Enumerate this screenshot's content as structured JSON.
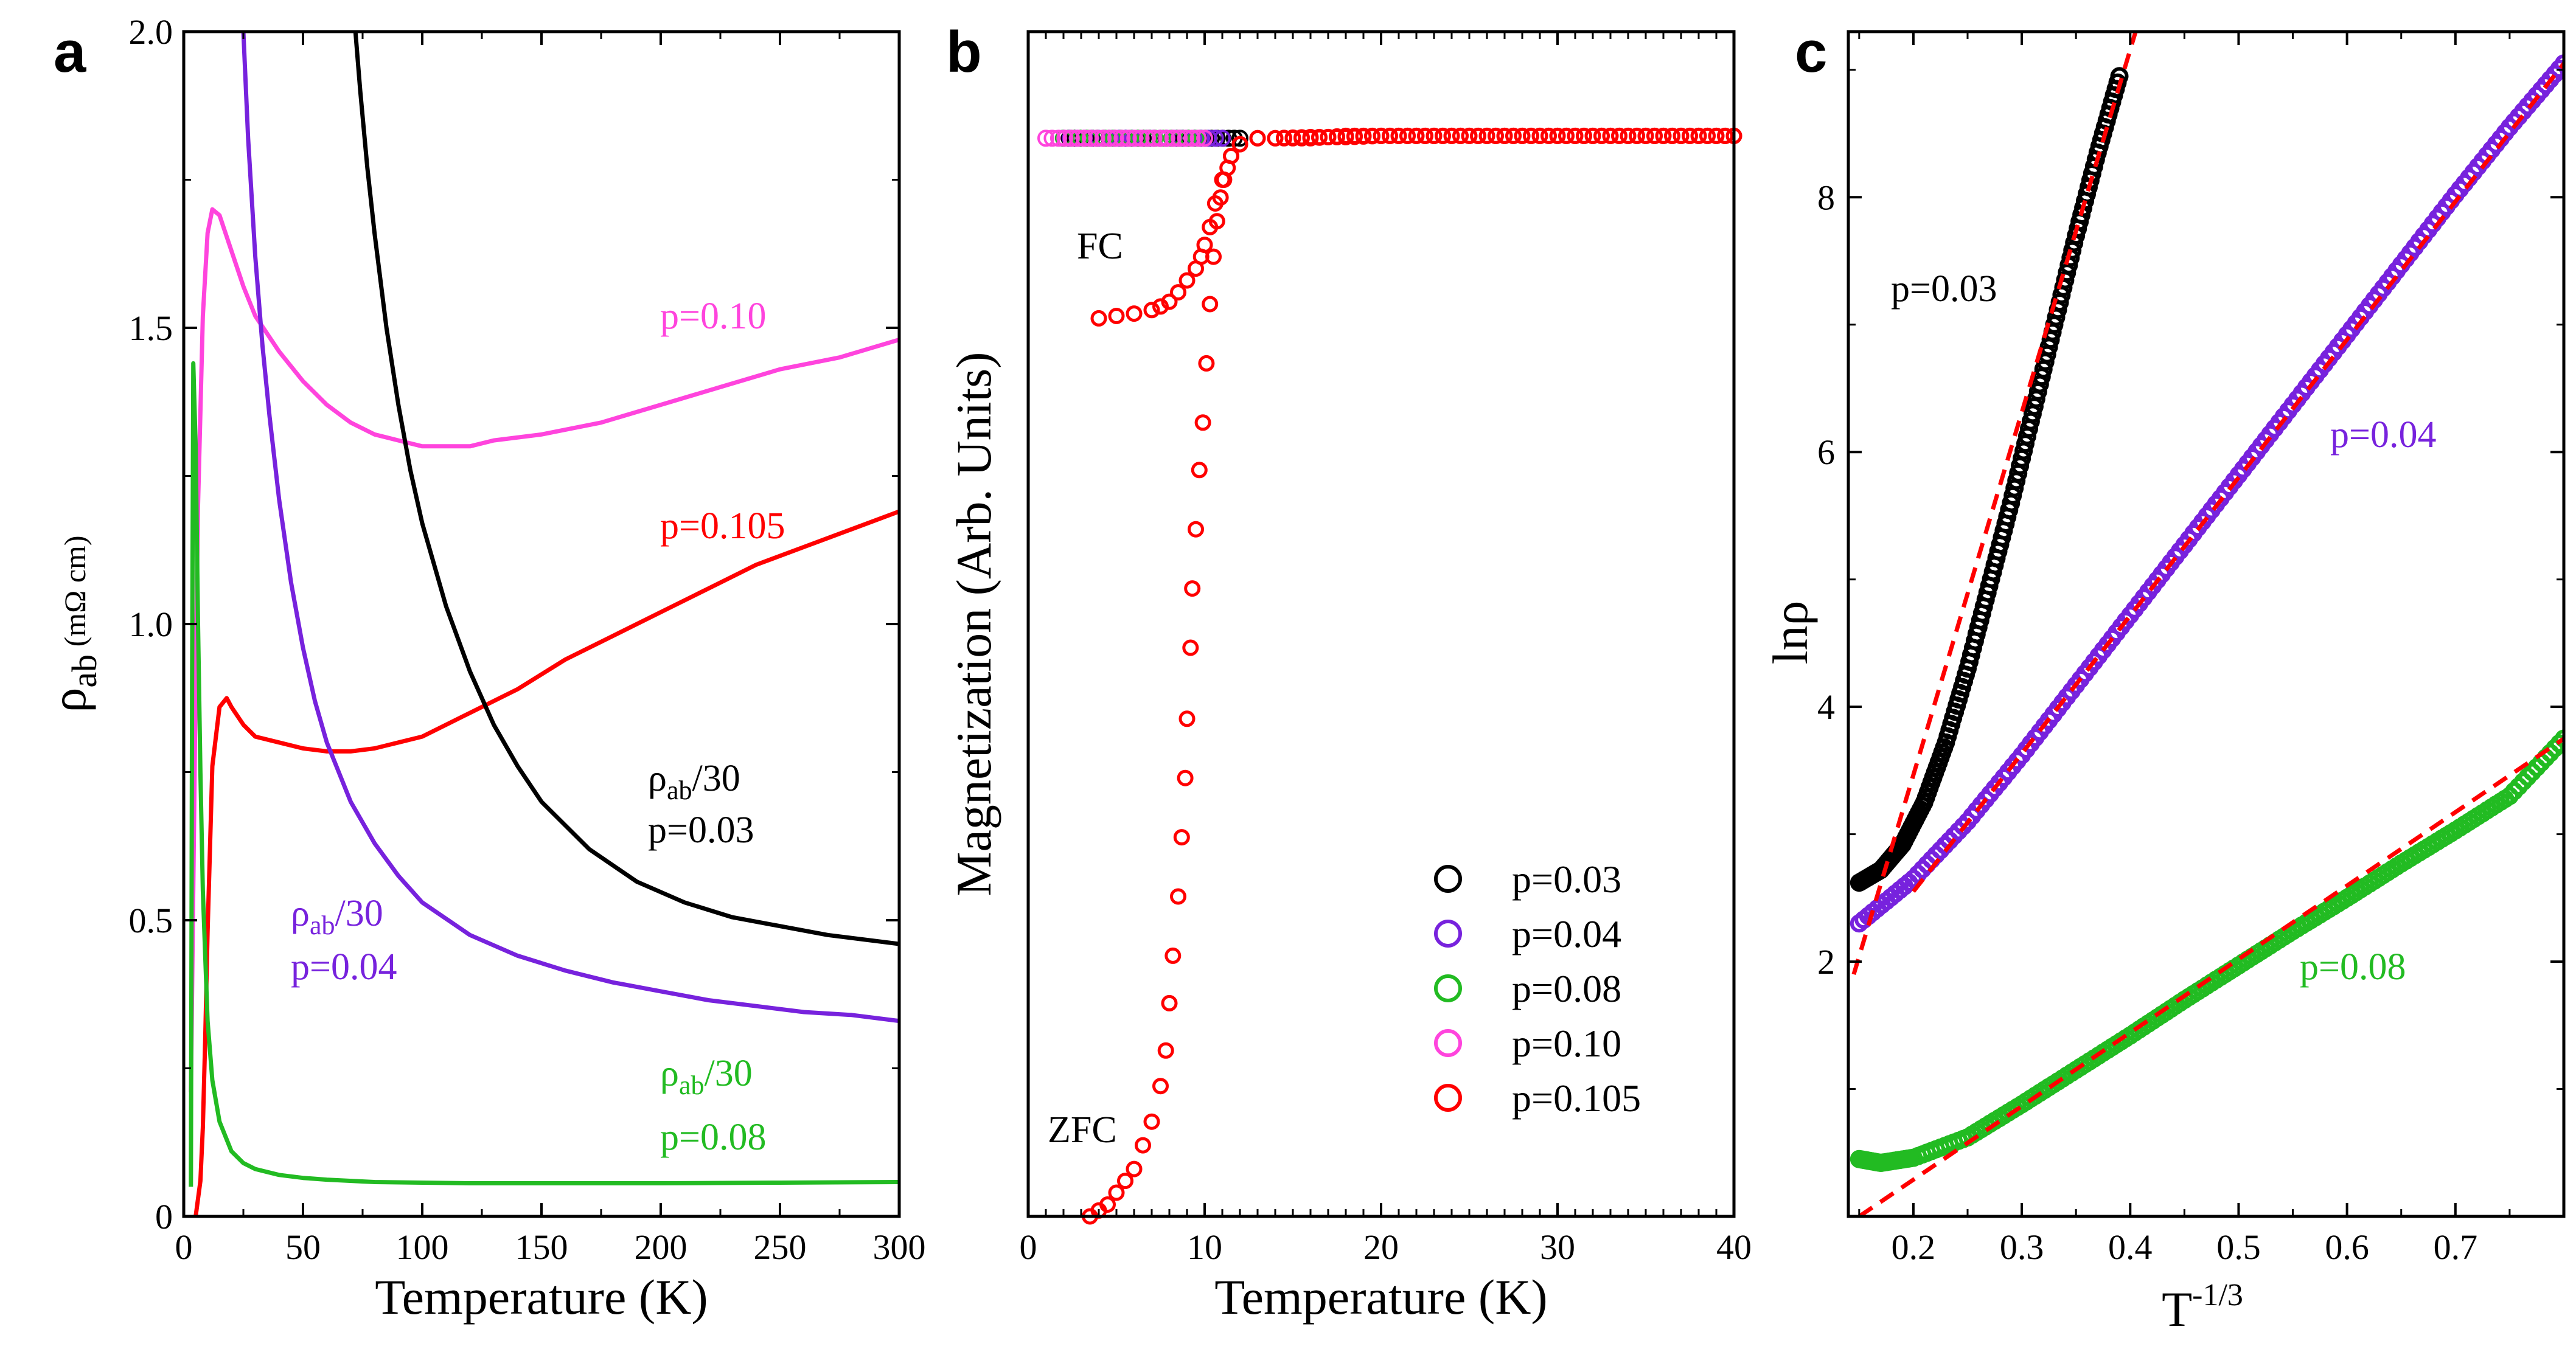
{
  "chart_data": [
    {
      "panel": "a",
      "type": "line",
      "xlabel": "Temperature (K)",
      "ylabel": {
        "main": "ρ",
        "sub": "ab",
        "unit": " (mΩ cm)"
      },
      "xlim": [
        0,
        300
      ],
      "ylim": [
        0,
        2.0
      ],
      "xticks": [
        "0",
        "50",
        "100",
        "150",
        "200",
        "250",
        "300"
      ],
      "yticks": [
        "0",
        "0.5",
        "1.0",
        "1.5",
        "2.0"
      ],
      "series": [
        {
          "name": "p=0.10",
          "color": "#ff44dd",
          "x": [
            3,
            5,
            6,
            8,
            10,
            12,
            15,
            20,
            25,
            30,
            40,
            50,
            60,
            70,
            80,
            90,
            100,
            110,
            120,
            130,
            150,
            175,
            200,
            225,
            250,
            275,
            300
          ],
          "y": [
            0.21,
            0.9,
            1.2,
            1.52,
            1.66,
            1.7,
            1.69,
            1.63,
            1.57,
            1.52,
            1.46,
            1.41,
            1.37,
            1.34,
            1.32,
            1.31,
            1.3,
            1.3,
            1.3,
            1.31,
            1.32,
            1.34,
            1.37,
            1.4,
            1.43,
            1.45,
            1.48
          ]
        },
        {
          "name": "p=0.105",
          "color": "#ff0000",
          "x": [
            5,
            7,
            8,
            9,
            10,
            12,
            15,
            18,
            20,
            25,
            30,
            40,
            50,
            60,
            70,
            80,
            90,
            100,
            110,
            120,
            140,
            160,
            180,
            200,
            220,
            240,
            260,
            280,
            300
          ],
          "y": [
            0,
            0.06,
            0.15,
            0.3,
            0.48,
            0.76,
            0.86,
            0.875,
            0.86,
            0.83,
            0.81,
            0.8,
            0.79,
            0.785,
            0.785,
            0.79,
            0.8,
            0.81,
            0.83,
            0.85,
            0.89,
            0.94,
            0.98,
            1.02,
            1.06,
            1.1,
            1.13,
            1.16,
            1.19
          ]
        },
        {
          "name": "ρab/30 p=0.03",
          "color": "#000000",
          "x": [
            72,
            74,
            77,
            80,
            85,
            90,
            95,
            100,
            110,
            120,
            130,
            140,
            150,
            170,
            190,
            210,
            230,
            250,
            270,
            300
          ],
          "y": [
            2.0,
            1.9,
            1.77,
            1.66,
            1.5,
            1.37,
            1.26,
            1.17,
            1.03,
            0.92,
            0.83,
            0.76,
            0.7,
            0.62,
            0.565,
            0.53,
            0.505,
            0.49,
            0.475,
            0.46
          ]
        },
        {
          "name": "ρab/30 p=0.04",
          "color": "#7722dd",
          "x": [
            25,
            27,
            30,
            33,
            36,
            40,
            45,
            50,
            55,
            60,
            70,
            80,
            90,
            100,
            120,
            140,
            160,
            180,
            200,
            220,
            240,
            260,
            280,
            300
          ],
          "y": [
            2.0,
            1.82,
            1.62,
            1.47,
            1.35,
            1.21,
            1.07,
            0.96,
            0.87,
            0.8,
            0.7,
            0.63,
            0.575,
            0.53,
            0.475,
            0.44,
            0.415,
            0.395,
            0.38,
            0.365,
            0.355,
            0.345,
            0.34,
            0.33
          ]
        },
        {
          "name": "ρab/30 p=0.08",
          "color": "#22bb22",
          "x": [
            3,
            3.5,
            4,
            5,
            6,
            7,
            8,
            10,
            12,
            15,
            20,
            25,
            30,
            40,
            50,
            60,
            80,
            100,
            120,
            150,
            200,
            250,
            300
          ],
          "y": [
            0.05,
            0.9,
            1.44,
            1.3,
            1.0,
            0.75,
            0.55,
            0.33,
            0.23,
            0.16,
            0.11,
            0.09,
            0.08,
            0.07,
            0.065,
            0.062,
            0.058,
            0.057,
            0.056,
            0.056,
            0.056,
            0.057,
            0.058
          ]
        }
      ],
      "annotations": [
        {
          "text": "p=0.10",
          "color": "#ff44dd"
        },
        {
          "text": "p=0.105",
          "color": "#ff0000"
        },
        {
          "main": "ρ",
          "sub": "ab",
          "tail": "/30",
          "line2": "p=0.03",
          "color": "#000000"
        },
        {
          "main": "ρ",
          "sub": "ab",
          "tail": "/30",
          "line2": "p=0.04",
          "color": "#7722dd"
        },
        {
          "main": "ρ",
          "sub": "ab",
          "tail": "/30",
          "line2": "p=0.08",
          "color": "#22bb22"
        }
      ]
    },
    {
      "panel": "b",
      "type": "scatter",
      "xlabel": "Temperature (K)",
      "ylabel": "Magnetization (Arb. Units)",
      "xlim": [
        0,
        40
      ],
      "ylim": [
        0,
        1
      ],
      "xticks": [
        "0",
        "10",
        "20",
        "30",
        "40"
      ],
      "series": [
        {
          "name": "p=0.03",
          "color": "#000000",
          "x_range": [
            2,
            12
          ],
          "y": 0.91,
          "n": 32
        },
        {
          "name": "p=0.04",
          "color": "#7722dd",
          "x_range": [
            2,
            11
          ],
          "y": 0.91,
          "n": 24
        },
        {
          "name": "p=0.08",
          "color": "#22bb22",
          "x_range": [
            2,
            10
          ],
          "y": 0.91,
          "n": 18
        },
        {
          "name": "p=0.10",
          "color": "#ff44dd",
          "x_range": [
            1,
            10
          ],
          "y": 0.91,
          "n": 26
        },
        {
          "name": "p=0.105 ZFC",
          "color": "#ff0000",
          "x": [
            3.5,
            4,
            4.5,
            5,
            5.5,
            6,
            6.5,
            7,
            7.5,
            7.8,
            8.0,
            8.2,
            8.5,
            8.7,
            8.9,
            9.0,
            9.2,
            9.3,
            9.5,
            9.7,
            9.9,
            10.1,
            10.3,
            10.5,
            10.7,
            10.9,
            11.1,
            11.3,
            11.5,
            12,
            13,
            14,
            16,
            18,
            20,
            22,
            24,
            26,
            28,
            30,
            32,
            34,
            36,
            38,
            40
          ],
          "y": [
            0.0,
            0.005,
            0.01,
            0.02,
            0.03,
            0.04,
            0.06,
            0.08,
            0.11,
            0.14,
            0.18,
            0.22,
            0.27,
            0.32,
            0.37,
            0.42,
            0.48,
            0.53,
            0.58,
            0.63,
            0.67,
            0.72,
            0.77,
            0.81,
            0.84,
            0.86,
            0.875,
            0.885,
            0.895,
            0.905,
            0.91,
            0.91,
            0.91,
            0.912,
            0.912,
            0.912,
            0.912,
            0.912,
            0.912,
            0.912,
            0.912,
            0.912,
            0.912,
            0.912,
            0.912
          ]
        },
        {
          "name": "p=0.105 FC",
          "color": "#ff0000",
          "x": [
            4,
            5,
            6,
            7,
            7.5,
            8,
            8.5,
            9,
            9.5,
            9.8,
            10,
            10.3,
            10.6,
            11,
            11.5,
            12,
            13,
            14,
            16,
            18,
            20,
            22,
            24,
            26,
            28,
            30,
            32,
            34,
            36,
            38,
            40
          ],
          "y": [
            0.758,
            0.76,
            0.762,
            0.765,
            0.768,
            0.772,
            0.78,
            0.79,
            0.8,
            0.81,
            0.82,
            0.835,
            0.855,
            0.875,
            0.895,
            0.905,
            0.91,
            0.91,
            0.911,
            0.911,
            0.912,
            0.912,
            0.912,
            0.912,
            0.912,
            0.912,
            0.912,
            0.912,
            0.912,
            0.912,
            0.912
          ]
        }
      ],
      "annotations": [
        {
          "text": "FC"
        },
        {
          "text": "ZFC"
        }
      ],
      "legend": [
        "p=0.03",
        "p=0.04",
        "p=0.08",
        "p=0.10",
        "p=0.105"
      ]
    },
    {
      "panel": "c",
      "type": "scatter",
      "xlabel": {
        "main": "T",
        "sup": "-1/3"
      },
      "ylabel": "lnρ",
      "xlim": [
        0.14,
        0.8
      ],
      "ylim": [
        0,
        9.3
      ],
      "xticks": [
        "0.2",
        "0.3",
        "0.4",
        "0.5",
        "0.6",
        "0.7"
      ],
      "yticks": [
        "2",
        "4",
        "6",
        "8"
      ],
      "series": [
        {
          "name": "p=0.03",
          "color": "#000000",
          "x": [
            0.15,
            0.17,
            0.19,
            0.21,
            0.23,
            0.25,
            0.27,
            0.29,
            0.31,
            0.33,
            0.35,
            0.37,
            0.39
          ],
          "y": [
            2.62,
            2.72,
            2.92,
            3.25,
            3.72,
            4.3,
            4.95,
            5.6,
            6.3,
            7.0,
            7.7,
            8.35,
            8.95
          ]
        },
        {
          "name": "p=0.04",
          "color": "#7722dd",
          "x": [
            0.15,
            0.2,
            0.25,
            0.3,
            0.35,
            0.4,
            0.45,
            0.5,
            0.55,
            0.6,
            0.65,
            0.7,
            0.75,
            0.8
          ],
          "y": [
            2.3,
            2.65,
            3.1,
            3.62,
            4.17,
            4.72,
            5.27,
            5.82,
            6.37,
            6.92,
            7.47,
            8.02,
            8.55,
            9.05
          ]
        },
        {
          "name": "p=0.08",
          "color": "#22bb22",
          "x": [
            0.15,
            0.17,
            0.2,
            0.25,
            0.3,
            0.35,
            0.4,
            0.45,
            0.5,
            0.55,
            0.6,
            0.65,
            0.7,
            0.75,
            0.8
          ],
          "y": [
            0.45,
            0.42,
            0.46,
            0.62,
            0.88,
            1.15,
            1.42,
            1.7,
            1.97,
            2.24,
            2.5,
            2.77,
            3.03,
            3.3,
            3.75
          ]
        }
      ],
      "fits": [
        {
          "name": "fit p=0.03",
          "color": "#ff0000",
          "x": [
            0.145,
            0.405
          ],
          "y": [
            1.9,
            9.3
          ]
        },
        {
          "name": "fit p=0.04",
          "color": "#ff0000",
          "x": [
            0.2,
            0.8
          ],
          "y": [
            2.55,
            9.05
          ]
        },
        {
          "name": "fit p=0.08",
          "color": "#ff0000",
          "x": [
            0.15,
            0.8
          ],
          "y": [
            0.0,
            3.75
          ]
        }
      ],
      "annotations": [
        {
          "text": "p=0.03",
          "color": "#000000"
        },
        {
          "text": "p=0.04",
          "color": "#7722dd"
        },
        {
          "text": "p=0.08",
          "color": "#22bb22"
        }
      ]
    }
  ],
  "panel_letters": [
    "a",
    "b",
    "c"
  ]
}
